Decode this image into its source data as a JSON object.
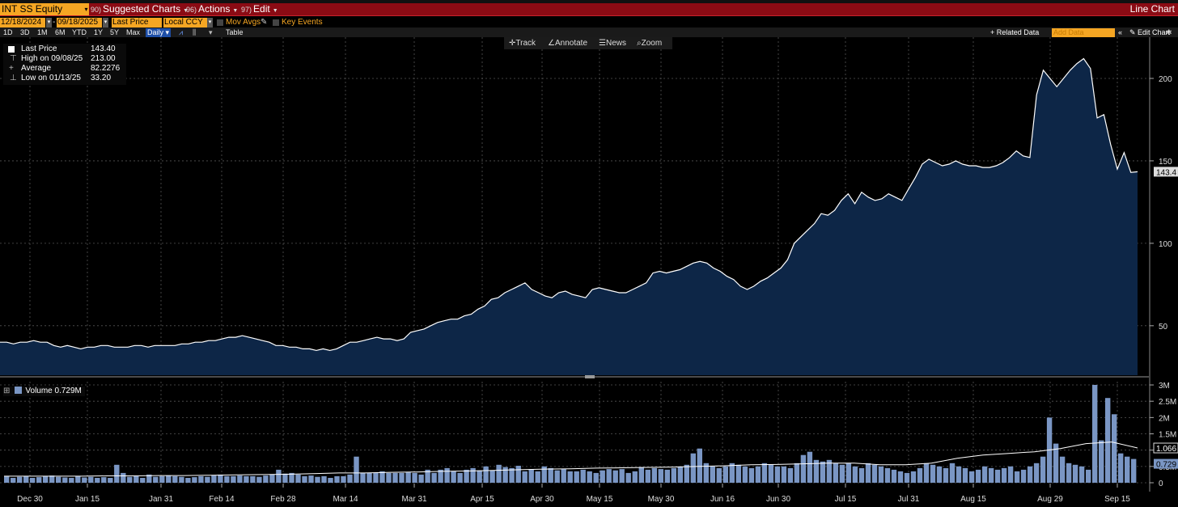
{
  "header": {
    "ticker": "INT SS Equity",
    "menu": [
      {
        "num": "90)",
        "label": "Suggested Charts"
      },
      {
        "num": "96)",
        "label": "Actions"
      },
      {
        "num": "97)",
        "label": "Edit"
      }
    ],
    "chart_type": "Line Chart"
  },
  "options": {
    "start_date": "12/18/2024",
    "end_date": "09/18/2025",
    "field": "Last Price",
    "currency": "Local CCY",
    "mov_avgs": "Mov Avgs",
    "key_events": "Key Events"
  },
  "ranges": [
    "1D",
    "3D",
    "1M",
    "6M",
    "YTD",
    "1Y",
    "5Y",
    "Max"
  ],
  "frequency": "Daily",
  "table_label": "Table",
  "related_data": "+ Related Data",
  "add_data": "Add Data",
  "edit_chart": "Edit Chart",
  "toolbar": {
    "track": "Track",
    "annotate": "Annotate",
    "news": "News",
    "zoom": "Zoom"
  },
  "legend": {
    "last_price_label": "Last Price",
    "last_price": "143.40",
    "high_label": "High on 09/08/25",
    "high": "213.00",
    "average_label": "Average",
    "average": "82.2276",
    "low_label": "Low on 01/13/25",
    "low": "33.20"
  },
  "volume_legend": {
    "label": "Volume",
    "value": "0.729M"
  },
  "colors": {
    "accent": "#f5a623",
    "header": "#8b0b14",
    "area": "#0d2647",
    "volume": "#7a96c4"
  },
  "chart_data": [
    {
      "type": "area",
      "series": [
        {
          "name": "Last Price",
          "values": [
            40,
            40,
            39,
            40,
            40,
            41,
            40,
            40,
            38,
            37,
            38,
            37,
            36,
            37,
            37,
            38,
            38,
            37,
            37,
            37,
            38,
            38,
            37,
            38,
            38,
            38,
            38,
            39,
            39,
            40,
            40,
            41,
            41,
            42,
            43,
            43,
            44,
            43,
            42,
            41,
            40,
            38,
            38,
            37,
            37,
            36,
            36,
            35,
            36,
            35,
            36,
            38,
            40,
            40,
            41,
            42,
            43,
            42,
            42,
            41,
            42,
            46,
            47,
            48,
            50,
            52,
            53,
            54,
            54,
            56,
            57,
            60,
            62,
            66,
            67,
            70,
            72,
            74,
            76,
            72,
            70,
            68,
            67,
            70,
            71,
            69,
            68,
            67,
            72,
            73,
            72,
            71,
            70,
            70,
            72,
            74,
            76,
            82,
            83,
            82,
            83,
            84,
            86,
            88,
            89,
            88,
            85,
            83,
            80,
            78,
            74,
            72,
            74,
            77,
            79,
            82,
            85,
            90,
            100,
            104,
            108,
            112,
            118,
            117,
            120,
            126,
            130,
            124,
            131,
            128,
            126,
            127,
            130,
            128,
            126,
            133,
            140,
            148,
            151,
            149,
            147,
            148,
            150,
            148,
            147,
            147,
            146,
            146,
            147,
            149,
            152,
            156,
            153,
            152,
            190,
            205,
            200,
            195,
            200,
            205,
            209,
            212,
            206,
            176,
            178,
            160,
            145,
            155,
            143,
            143.4
          ]
        }
      ],
      "x_labels": [
        "Dec 30",
        "Jan 15",
        "Jan 31",
        "Feb 14",
        "Feb 28",
        "Mar 14",
        "Mar 31",
        "Apr 15",
        "Apr 30",
        "May 15",
        "May 30",
        "Jun 16",
        "Jun 30",
        "Jul 15",
        "Jul 31",
        "Aug 15",
        "Aug 29",
        "Sep 15"
      ],
      "y_ticks": [
        50,
        100,
        150,
        200
      ],
      "ylim": [
        20,
        225
      ],
      "last_value_label": "143.4",
      "grid": true
    },
    {
      "type": "bar",
      "series": [
        {
          "name": "Volume",
          "values": [
            0.2,
            0.15,
            0.18,
            0.2,
            0.15,
            0.17,
            0.2,
            0.22,
            0.18,
            0.16,
            0.15,
            0.2,
            0.16,
            0.18,
            0.15,
            0.17,
            0.15,
            0.55,
            0.3,
            0.18,
            0.2,
            0.15,
            0.25,
            0.18,
            0.2,
            0.22,
            0.2,
            0.18,
            0.15,
            0.17,
            0.2,
            0.18,
            0.22,
            0.25,
            0.2,
            0.2,
            0.22,
            0.2,
            0.2,
            0.18,
            0.22,
            0.25,
            0.4,
            0.28,
            0.3,
            0.25,
            0.2,
            0.22,
            0.18,
            0.2,
            0.15,
            0.2,
            0.2,
            0.25,
            0.8,
            0.3,
            0.3,
            0.3,
            0.35,
            0.3,
            0.3,
            0.3,
            0.32,
            0.3,
            0.25,
            0.4,
            0.3,
            0.4,
            0.45,
            0.35,
            0.3,
            0.4,
            0.45,
            0.38,
            0.5,
            0.38,
            0.55,
            0.48,
            0.45,
            0.52,
            0.35,
            0.42,
            0.35,
            0.5,
            0.45,
            0.38,
            0.42,
            0.35,
            0.35,
            0.4,
            0.35,
            0.3,
            0.38,
            0.42,
            0.38,
            0.42,
            0.3,
            0.35,
            0.48,
            0.4,
            0.45,
            0.42,
            0.4,
            0.45,
            0.5,
            0.55,
            0.9,
            1.05,
            0.6,
            0.5,
            0.45,
            0.5,
            0.6,
            0.55,
            0.5,
            0.45,
            0.5,
            0.6,
            0.55,
            0.5,
            0.5,
            0.45,
            0.6,
            0.85,
            0.95,
            0.7,
            0.65,
            0.7,
            0.6,
            0.55,
            0.6,
            0.5,
            0.45,
            0.6,
            0.55,
            0.5,
            0.45,
            0.4,
            0.35,
            0.3,
            0.35,
            0.45,
            0.6,
            0.55,
            0.5,
            0.45,
            0.6,
            0.5,
            0.45,
            0.35,
            0.4,
            0.5,
            0.45,
            0.4,
            0.45,
            0.5,
            0.35,
            0.4,
            0.5,
            0.6,
            0.8,
            2.0,
            1.2,
            0.8,
            0.6,
            0.55,
            0.5,
            0.4,
            3.0,
            1.3,
            2.6,
            2.1,
            0.9,
            0.8,
            0.73
          ]
        },
        {
          "name": "Volume MA",
          "values": [
            0.2,
            0.2,
            0.2,
            0.2,
            0.21,
            0.21,
            0.22,
            0.22,
            0.23,
            0.24,
            0.25,
            0.26,
            0.28,
            0.3,
            0.3,
            0.32,
            0.33,
            0.35,
            0.36,
            0.38,
            0.4,
            0.42,
            0.43,
            0.45,
            0.46,
            0.47,
            0.48,
            0.5,
            0.52,
            0.55,
            0.56,
            0.58,
            0.6,
            0.6,
            0.55,
            0.55,
            0.6,
            0.75,
            0.85,
            0.9,
            0.95,
            1.05,
            1.2,
            1.25,
            1.066
          ]
        }
      ],
      "y_ticks": [
        "0",
        "0.5M",
        "1M",
        "1.5M",
        "2M",
        "2.5M",
        "3M"
      ],
      "ylim": [
        0,
        3.1
      ],
      "ma_value_label": "1.066",
      "last_value_label": "0.729"
    }
  ]
}
